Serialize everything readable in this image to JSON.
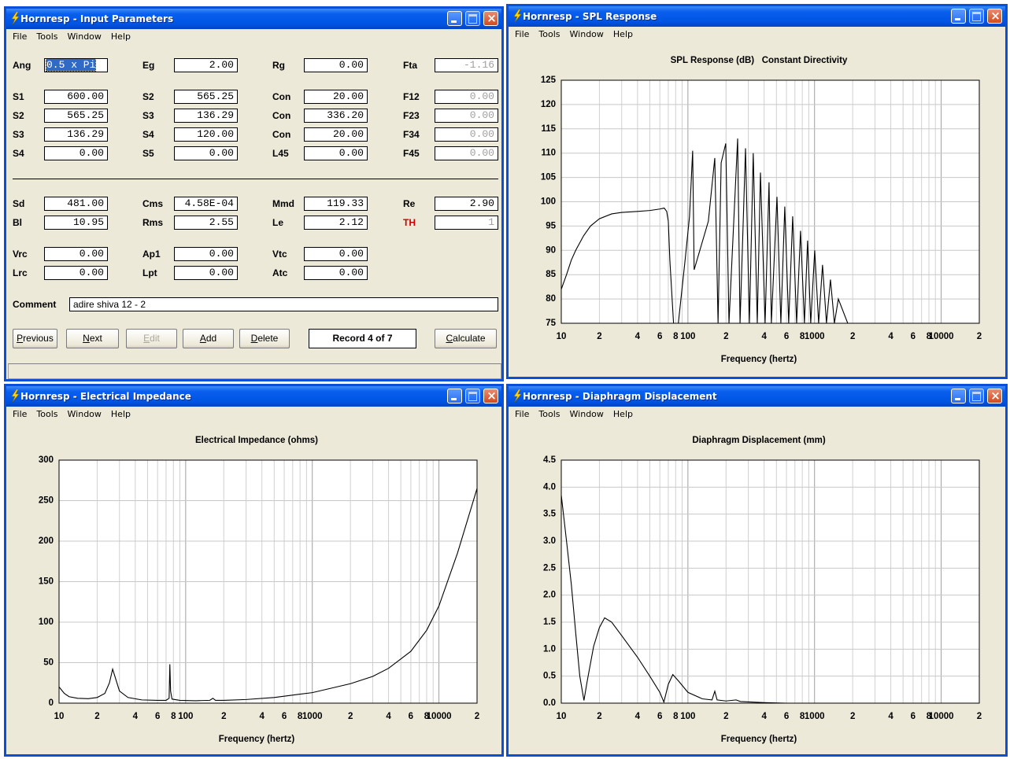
{
  "windows": [
    {
      "title": "Hornresp - Input Parameters",
      "menu": [
        "File",
        "Tools",
        "Window",
        "Help"
      ],
      "form": {
        "rows": [
          [
            {
              "label": "Ang",
              "value": "0.5 x Pi",
              "selected": true
            },
            {
              "label": "Eg",
              "value": "2.00"
            },
            {
              "label": "Rg",
              "value": "0.00"
            },
            {
              "label": "Fta",
              "value": "-1.16",
              "disabled": true
            }
          ],
          [
            {
              "label": "S1",
              "value": "600.00"
            },
            {
              "label": "S2",
              "value": "565.25"
            },
            {
              "label": "Con",
              "value": "20.00"
            },
            {
              "label": "F12",
              "value": "0.00",
              "disabled": true
            }
          ],
          [
            {
              "label": "S2",
              "value": "565.25"
            },
            {
              "label": "S3",
              "value": "136.29"
            },
            {
              "label": "Con",
              "value": "336.20"
            },
            {
              "label": "F23",
              "value": "0.00",
              "disabled": true
            }
          ],
          [
            {
              "label": "S3",
              "value": "136.29"
            },
            {
              "label": "S4",
              "value": "120.00"
            },
            {
              "label": "Con",
              "value": "20.00"
            },
            {
              "label": "F34",
              "value": "0.00",
              "disabled": true
            }
          ],
          [
            {
              "label": "S4",
              "value": "0.00"
            },
            {
              "label": "S5",
              "value": "0.00"
            },
            {
              "label": "L45",
              "value": "0.00"
            },
            {
              "label": "F45",
              "value": "0.00",
              "disabled": true
            }
          ],
          [
            {
              "label": "Sd",
              "value": "481.00"
            },
            {
              "label": "Cms",
              "value": "4.58E-04"
            },
            {
              "label": "Mmd",
              "value": "119.33"
            },
            {
              "label": "Re",
              "value": "2.90"
            }
          ],
          [
            {
              "label": "Bl",
              "value": "10.95"
            },
            {
              "label": "Rms",
              "value": "2.55"
            },
            {
              "label": "Le",
              "value": "2.12"
            },
            {
              "label": "TH",
              "value": "1",
              "disabled": true,
              "label_color": "#cc0000"
            }
          ],
          [
            {
              "label": "Vrc",
              "value": "0.00"
            },
            {
              "label": "Ap1",
              "value": "0.00"
            },
            {
              "label": "Vtc",
              "value": "0.00"
            }
          ],
          [
            {
              "label": "Lrc",
              "value": "0.00"
            },
            {
              "label": "Lpt",
              "value": "0.00"
            },
            {
              "label": "Atc",
              "value": "0.00"
            }
          ]
        ]
      },
      "comment": {
        "label": "Comment",
        "value": "adire shiva 12 - 2"
      },
      "buttons": [
        {
          "label": "Previous"
        },
        {
          "label": "Next"
        },
        {
          "label": "Edit",
          "disabled": true
        },
        {
          "label": "Add"
        },
        {
          "label": "Delete"
        }
      ],
      "record": "Record 4 of 7",
      "calculate": "Calculate"
    },
    {
      "title": "Hornresp - SPL Response",
      "menu": [
        "File",
        "Tools",
        "Window",
        "Help"
      ],
      "chart_data": {
        "type": "line",
        "title": "SPL Response (dB)   Constant Directivity",
        "x_label": "Frequency (hertz)",
        "log_x": true,
        "grid": true,
        "xlim": [
          10,
          20000
        ],
        "ylim": [
          75,
          125
        ],
        "xticks": [
          10,
          {
            "value": 20,
            "label": "2"
          },
          {
            "value": 40,
            "label": "4"
          },
          {
            "value": 60,
            "label": "6"
          },
          {
            "value": 80,
            "label": "8"
          },
          100,
          {
            "value": 200,
            "label": "2"
          },
          {
            "value": 400,
            "label": "4"
          },
          {
            "value": 600,
            "label": "6"
          },
          {
            "value": 800,
            "label": "8"
          },
          1000,
          {
            "value": 2000,
            "label": "2"
          },
          {
            "value": 4000,
            "label": "4"
          },
          {
            "value": 6000,
            "label": "6"
          },
          {
            "value": 8000,
            "label": "8"
          },
          10000,
          {
            "value": 20000,
            "label": "2"
          }
        ],
        "xminor": [
          30,
          50,
          70,
          90,
          300,
          500,
          700,
          900,
          3000,
          5000,
          7000,
          9000
        ],
        "yticks": [
          75,
          80,
          85,
          90,
          95,
          100,
          105,
          110,
          115,
          120,
          125
        ],
        "series": [
          {
            "color": "#000000",
            "x": [
              10,
              11,
              12,
              13,
              15,
              17,
              20,
              25,
              30,
              40,
              50,
              60,
              65,
              68,
              70,
              72,
              77,
              84,
              95,
              103,
              109,
              112,
              145,
              163,
              173,
              183,
              199,
              211,
              247,
              258,
              285,
              306,
              328,
              353,
              374,
              407,
              437,
              456,
              505,
              542,
              582,
              625,
              672,
              722,
              775,
              832,
              881,
              933,
              1003,
              1077,
              1156,
              1242,
              1336,
              1435,
              1541,
              1828
            ],
            "values": [
              82,
              85,
              88,
              90,
              93,
              95,
              96.5,
              97.5,
              97.8,
              98,
              98.2,
              98.5,
              98.7,
              98,
              96,
              88,
              75,
              75,
              88,
              97,
              110.5,
              86,
              96,
              109,
              75,
              108,
              112,
              75,
              113,
              75,
              111,
              75,
              110,
              75,
              106,
              75,
              104,
              75,
              101,
              75,
              99,
              75,
              97,
              75,
              94,
              75,
              92,
              75,
              90,
              75,
              87,
              75,
              84,
              75,
              80,
              75
            ]
          }
        ]
      }
    },
    {
      "title": "Hornresp - Electrical Impedance",
      "menu": [
        "File",
        "Tools",
        "Window",
        "Help"
      ],
      "chart_data": {
        "type": "line",
        "title": "Electrical Impedance (ohms)",
        "x_label": "Frequency (hertz)",
        "log_x": true,
        "grid": true,
        "xlim": [
          10,
          20000
        ],
        "ylim": [
          0,
          300
        ],
        "xticks": [
          10,
          {
            "value": 20,
            "label": "2"
          },
          {
            "value": 40,
            "label": "4"
          },
          {
            "value": 60,
            "label": "6"
          },
          {
            "value": 80,
            "label": "8"
          },
          100,
          {
            "value": 200,
            "label": "2"
          },
          {
            "value": 400,
            "label": "4"
          },
          {
            "value": 600,
            "label": "6"
          },
          {
            "value": 800,
            "label": "8"
          },
          1000,
          {
            "value": 2000,
            "label": "2"
          },
          {
            "value": 4000,
            "label": "4"
          },
          {
            "value": 6000,
            "label": "6"
          },
          {
            "value": 8000,
            "label": "8"
          },
          10000,
          {
            "value": 20000,
            "label": "2"
          }
        ],
        "xminor": [
          30,
          50,
          70,
          90,
          300,
          500,
          700,
          900,
          3000,
          5000,
          7000,
          9000
        ],
        "yticks": [
          0,
          50,
          100,
          150,
          200,
          250,
          300
        ],
        "series": [
          {
            "color": "#000000",
            "x": [
              10,
              11,
              12,
              14,
              17,
              20,
              23,
              25,
              26.5,
              28,
              30,
              35,
              45,
              60,
              70,
              74,
              75,
              76,
              78,
              90,
              120,
              155,
              164,
              172,
              200,
              300,
              500,
              1000,
              2000,
              3000,
              4000,
              6000,
              8000,
              10000,
              14000,
              20000
            ],
            "values": [
              20,
              12,
              8,
              6,
              5.5,
              7,
              12,
              25,
              42,
              30,
              15,
              7,
              4,
              3.5,
              3.5,
              6,
              48,
              15,
              5,
              3.5,
              3,
              3.5,
              6,
              3.5,
              3.5,
              4.5,
              7,
              13,
              24,
              33,
              43,
              64,
              90,
              120,
              185,
              265
            ]
          }
        ]
      }
    },
    {
      "title": "Hornresp - Diaphragm Displacement",
      "menu": [
        "File",
        "Tools",
        "Window",
        "Help"
      ],
      "chart_data": {
        "type": "line",
        "title": "Diaphragm Displacement (mm)",
        "x_label": "Frequency (hertz)",
        "log_x": true,
        "grid": true,
        "xlim": [
          10,
          20000
        ],
        "ylim": [
          0,
          4.5
        ],
        "xticks": [
          10,
          {
            "value": 20,
            "label": "2"
          },
          {
            "value": 40,
            "label": "4"
          },
          {
            "value": 60,
            "label": "6"
          },
          {
            "value": 80,
            "label": "8"
          },
          100,
          {
            "value": 200,
            "label": "2"
          },
          {
            "value": 400,
            "label": "4"
          },
          {
            "value": 600,
            "label": "6"
          },
          {
            "value": 800,
            "label": "8"
          },
          1000,
          {
            "value": 2000,
            "label": "2"
          },
          {
            "value": 4000,
            "label": "4"
          },
          {
            "value": 6000,
            "label": "6"
          },
          {
            "value": 8000,
            "label": "8"
          },
          10000,
          {
            "value": 20000,
            "label": "2"
          }
        ],
        "xminor": [
          30,
          50,
          70,
          90,
          300,
          500,
          700,
          900,
          3000,
          5000,
          7000,
          9000
        ],
        "yticks": [
          {
            "value": 0,
            "label": "0.0"
          },
          0.5,
          {
            "value": 1,
            "label": "1.0"
          },
          1.5,
          {
            "value": 2,
            "label": "2.0"
          },
          2.5,
          {
            "value": 3,
            "label": "3.0"
          },
          3.5,
          {
            "value": 4,
            "label": "4.0"
          },
          4.5
        ],
        "series": [
          {
            "color": "#000000",
            "x": [
              10,
              11,
              12,
              13,
              14,
              15.1,
              16,
              18,
              20,
              22,
              25,
              30,
              40,
              50,
              60,
              64.6,
              70,
              76,
              85,
              100,
              130,
              155,
              163,
              170,
              200,
              240,
              260,
              400,
              600
            ],
            "values": [
              3.85,
              3.0,
              2.2,
              1.3,
              0.5,
              0.05,
              0.4,
              1.05,
              1.4,
              1.58,
              1.5,
              1.25,
              0.85,
              0.5,
              0.2,
              0.02,
              0.35,
              0.53,
              0.4,
              0.2,
              0.08,
              0.06,
              0.22,
              0.06,
              0.04,
              0.06,
              0.03,
              0.01,
              0
            ]
          }
        ]
      }
    }
  ]
}
